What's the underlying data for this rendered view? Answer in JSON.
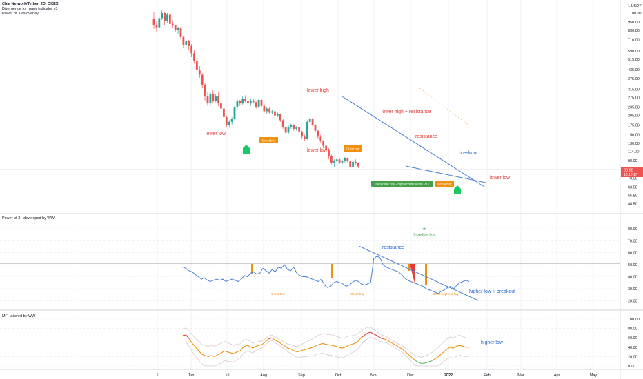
{
  "header": {
    "symbol_line": "Chia Network/Tether, 2D, OKEX",
    "indicator_1": "Divergence for many indicator v3",
    "indicator_2": "Power of 3 as overlay"
  },
  "colors": {
    "up": "#26a69a",
    "down": "#ef5350",
    "line_blue": "#4a7fd4",
    "annotation_red": "#e53935",
    "annotation_blue": "#1e63d6",
    "orange": "#f0900c",
    "green_badge": "#43a047",
    "mfi_orange": "#f0900c",
    "mfi_red": "#e53935",
    "mfi_green": "#66bb6a",
    "grid": "#e8eaee",
    "price_tag": "#ef5350"
  },
  "panes": {
    "price": {
      "axis_labels": [
        "1 USDT",
        "1100.00",
        "950.00",
        "830.00",
        "710.00",
        "590.00",
        "515.00",
        "435.00",
        "375.00",
        "315.00",
        "275.00",
        "235.00",
        "205.00",
        "175.00",
        "150.00",
        "130.00",
        "114.00",
        "98.00",
        "85.00",
        "73.50",
        "63.50",
        "55.50",
        "48.50"
      ],
      "price_tag": "88.88",
      "price_tag_time": "18:10:17",
      "annotations": {
        "lower_low_1": "lower low",
        "lower_high": "lower high",
        "lower_low_2": "lower low",
        "lower_high_resistance": "lower high + resistance",
        "resistance": "resistance",
        "breakout": "breakout",
        "lower_low_3": "lower low"
      },
      "badges": {
        "great_buy_1": "Great buy",
        "great_buy_2": "Great buy",
        "great_buy_3": "Great buy",
        "incredible_buy": "Incredible buy - high accumulation P/O"
      }
    },
    "power3": {
      "title": "Power of 3 - developed by WW",
      "axis_labels": [
        "80.00",
        "70.00",
        "60.00",
        "50.00",
        "40.00",
        "30.00",
        "20.00"
      ],
      "annotations": {
        "resistance": "resistance",
        "higher_low_breakout": "higher low + breakout",
        "incredible_buy": "Incredible buy",
        "great_buy_1": "Great buy",
        "great_buy_2": "Great buy",
        "great_buy_3": "Great buy",
        "great_buy_4": "Great buy"
      }
    },
    "mfi": {
      "title": "MFI tailored by WW",
      "axis_labels": [
        "100.00",
        "80.00",
        "60.00",
        "40.00",
        "20.00",
        "0.00"
      ],
      "annotations": {
        "higher_low": "higher low"
      }
    }
  },
  "time_axis": [
    "1",
    "Jun",
    "Jul",
    "Aug",
    "Sep",
    "Oct",
    "Nov",
    "Dec",
    "2022",
    "Feb",
    "Mar",
    "Apr",
    "May"
  ],
  "chart_data": [
    {
      "type": "candlestick",
      "title": "Chia Network/Tether, 2D, OKEX",
      "ylabel": "USDT",
      "scale": "log",
      "ylim": [
        45,
        1150
      ],
      "x_start": "2021-05-06",
      "x_step_days": 2,
      "candles": [
        [
          1000,
          1120,
          850,
          900
        ],
        [
          900,
          960,
          800,
          870
        ],
        [
          870,
          1050,
          860,
          1010
        ],
        [
          1010,
          1150,
          980,
          1100
        ],
        [
          1100,
          1120,
          900,
          960
        ],
        [
          960,
          1100,
          940,
          1070
        ],
        [
          1070,
          1080,
          880,
          920
        ],
        [
          920,
          980,
          860,
          900
        ],
        [
          900,
          910,
          800,
          830
        ],
        [
          830,
          880,
          780,
          860
        ],
        [
          860,
          870,
          720,
          750
        ],
        [
          750,
          760,
          620,
          650
        ],
        [
          650,
          720,
          630,
          700
        ],
        [
          700,
          710,
          600,
          640
        ],
        [
          640,
          660,
          540,
          570
        ],
        [
          570,
          600,
          480,
          500
        ],
        [
          500,
          520,
          400,
          430
        ],
        [
          430,
          460,
          380,
          400
        ],
        [
          400,
          410,
          320,
          340
        ],
        [
          340,
          350,
          260,
          280
        ],
        [
          280,
          300,
          240,
          250
        ],
        [
          250,
          300,
          240,
          290
        ],
        [
          290,
          310,
          250,
          260
        ],
        [
          260,
          290,
          255,
          280
        ],
        [
          280,
          300,
          240,
          250
        ],
        [
          250,
          270,
          220,
          230
        ],
        [
          230,
          235,
          195,
          200
        ],
        [
          200,
          205,
          170,
          175
        ],
        [
          175,
          190,
          170,
          185
        ],
        [
          185,
          200,
          175,
          195
        ],
        [
          195,
          240,
          190,
          235
        ],
        [
          235,
          270,
          225,
          260
        ],
        [
          260,
          265,
          240,
          250
        ],
        [
          250,
          280,
          245,
          270
        ],
        [
          270,
          285,
          255,
          260
        ],
        [
          260,
          265,
          245,
          250
        ],
        [
          250,
          270,
          240,
          262
        ],
        [
          262,
          270,
          250,
          255
        ],
        [
          255,
          258,
          230,
          235
        ],
        [
          235,
          270,
          230,
          265
        ],
        [
          265,
          270,
          235,
          240
        ],
        [
          240,
          250,
          215,
          220
        ],
        [
          220,
          235,
          210,
          230
        ],
        [
          230,
          235,
          212,
          215
        ],
        [
          215,
          225,
          210,
          220
        ],
        [
          220,
          222,
          200,
          205
        ],
        [
          205,
          215,
          200,
          210
        ],
        [
          210,
          212,
          185,
          190
        ],
        [
          190,
          195,
          165,
          170
        ],
        [
          170,
          172,
          150,
          155
        ],
        [
          155,
          175,
          150,
          170
        ],
        [
          170,
          180,
          165,
          175
        ],
        [
          175,
          178,
          160,
          165
        ],
        [
          165,
          172,
          160,
          170
        ],
        [
          170,
          172,
          155,
          158
        ],
        [
          158,
          160,
          140,
          145
        ],
        [
          145,
          150,
          135,
          140
        ],
        [
          140,
          190,
          138,
          185
        ],
        [
          185,
          200,
          180,
          195
        ],
        [
          195,
          197,
          170,
          175
        ],
        [
          175,
          178,
          155,
          160
        ],
        [
          160,
          162,
          140,
          145
        ],
        [
          145,
          150,
          130,
          135
        ],
        [
          135,
          137,
          120,
          125
        ],
        [
          125,
          130,
          115,
          118
        ],
        [
          118,
          120,
          100,
          105
        ],
        [
          105,
          108,
          92,
          95
        ],
        [
          95,
          100,
          88,
          97
        ],
        [
          97,
          103,
          92,
          100
        ],
        [
          100,
          102,
          93,
          95
        ],
        [
          95,
          100,
          92,
          98
        ],
        [
          98,
          104,
          94,
          102
        ],
        [
          102,
          103,
          95,
          97
        ],
        [
          97,
          98,
          86,
          88
        ],
        [
          88,
          98,
          87,
          96
        ],
        [
          96,
          100,
          92,
          94
        ],
        [
          94,
          95,
          87,
          89
        ]
      ]
    },
    {
      "type": "line",
      "title": "Power of 3 - developed by WW",
      "ylim": [
        15,
        88
      ],
      "series": [
        {
          "values": [
            48,
            47,
            45,
            44,
            42,
            40,
            38,
            39,
            37,
            36,
            37,
            38,
            37,
            38,
            36,
            37,
            38,
            37,
            36,
            38,
            41,
            40,
            43,
            44,
            42,
            43,
            47,
            45,
            43,
            46,
            44,
            48,
            47,
            50,
            46,
            45,
            48,
            43,
            41,
            40,
            40,
            39,
            38,
            37,
            36,
            38,
            33,
            31,
            32,
            35,
            36,
            35,
            34,
            32,
            33,
            35,
            37,
            36,
            34,
            33,
            34,
            35,
            55,
            57,
            56,
            50,
            48,
            47,
            46,
            45,
            44,
            42,
            39,
            37,
            36,
            35,
            34,
            33,
            32,
            30,
            29,
            28,
            27,
            26,
            28,
            29,
            31,
            32,
            30,
            33,
            35,
            36,
            37,
            36
          ]
        }
      ]
    },
    {
      "type": "line",
      "title": "MFI tailored by WW",
      "ylim": [
        0,
        100
      ],
      "series": [
        {
          "values": [
            65,
            66,
            58,
            48,
            40,
            32,
            25,
            22,
            20,
            22,
            20,
            24,
            27,
            32,
            30,
            28,
            26,
            30,
            32,
            40,
            44,
            42,
            38,
            42,
            44,
            46,
            52,
            58,
            60,
            55,
            52,
            47,
            43,
            38,
            36,
            32,
            30,
            32,
            34,
            36,
            38,
            40,
            44,
            46,
            48,
            46,
            45,
            44,
            42,
            40,
            38,
            40,
            44,
            46,
            48,
            52,
            60,
            65,
            70,
            72,
            68,
            65,
            60,
            58,
            56,
            52,
            48,
            44,
            40,
            36,
            30,
            24,
            18,
            12,
            8,
            5,
            6,
            8,
            10,
            14,
            18,
            24,
            30,
            36,
            40,
            38,
            42,
            44,
            42,
            40,
            40
          ]
        }
      ]
    }
  ]
}
